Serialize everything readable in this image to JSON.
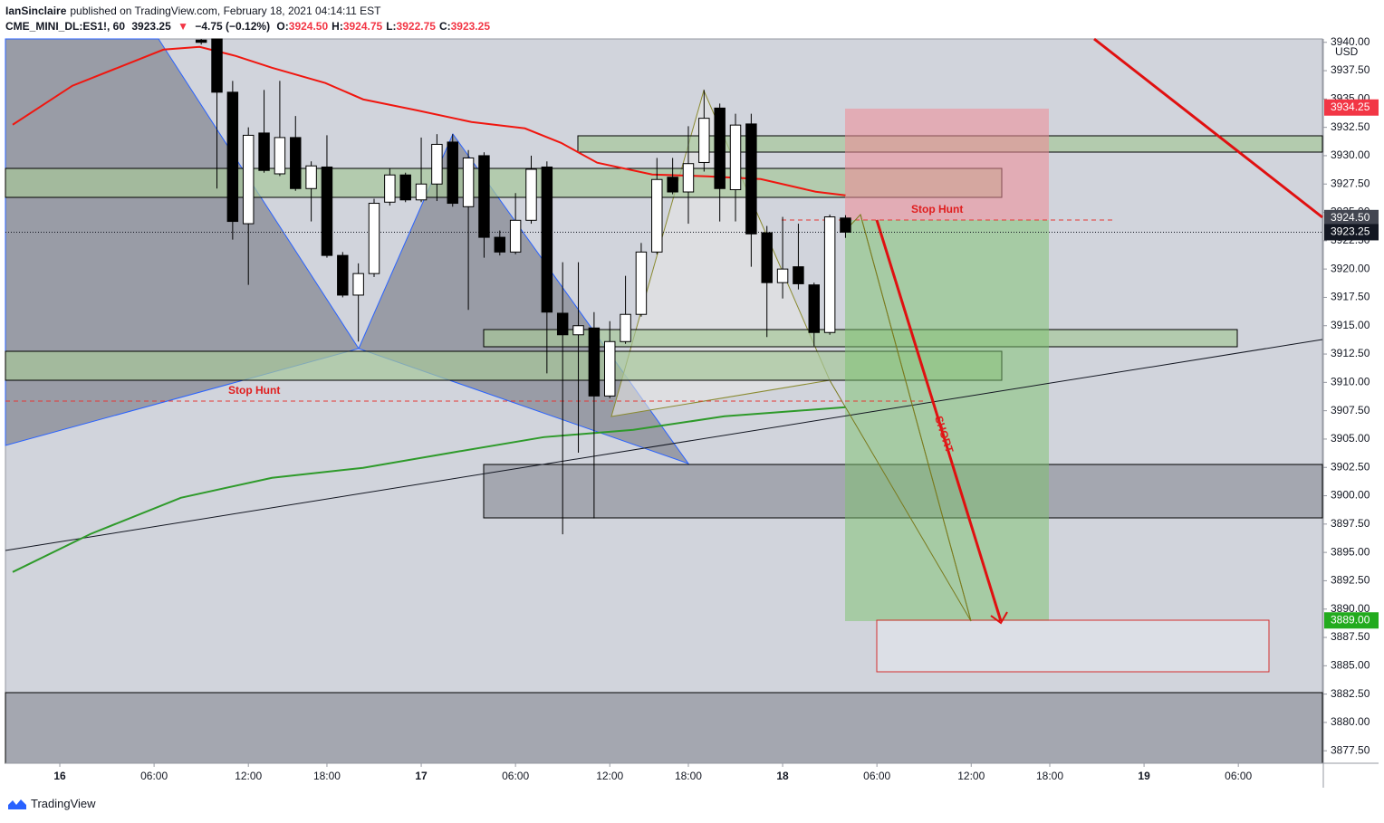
{
  "header": {
    "publisher": "IanSinclaire",
    "published": "published on TradingView.com, February 18, 2021 04:14:11 EST",
    "symbol": "CME_MINI_DL:ES1!, 60",
    "last": "3923.25",
    "arrow": "▼",
    "change": "−4.75 (−0.12%)",
    "ohlc": [
      {
        "key": "O:",
        "value": "3924.50"
      },
      {
        "key": "H:",
        "value": "3924.75"
      },
      {
        "key": "L:",
        "value": "3922.75"
      },
      {
        "key": "C:",
        "value": "3923.25"
      }
    ]
  },
  "footer": {
    "brand": "TradingView"
  },
  "chart_data": {
    "type": "candlestick",
    "currency": "USD",
    "xlim": [
      -3.46,
      80.35
    ],
    "ylim": [
      3876.4,
      3940.3
    ],
    "xticks": [
      {
        "value": 0,
        "label": "16"
      },
      {
        "value": 6,
        "label": "06:00"
      },
      {
        "value": 12,
        "label": "12:00"
      },
      {
        "value": 17,
        "label": "18:00"
      },
      {
        "value": 23,
        "label": "17"
      },
      {
        "value": 29,
        "label": "06:00"
      },
      {
        "value": 35,
        "label": "12:00"
      },
      {
        "value": 40,
        "label": "18:00"
      },
      {
        "value": 46,
        "label": "18"
      },
      {
        "value": 52,
        "label": "06:00"
      },
      {
        "value": 58,
        "label": "12:00"
      },
      {
        "value": 63,
        "label": "18:00"
      },
      {
        "value": 69,
        "label": "19"
      },
      {
        "value": 75,
        "label": "06:00"
      }
    ],
    "yticks": [
      {
        "value": 3877.5,
        "label": "3877.50"
      },
      {
        "value": 3880,
        "label": "3880.00"
      },
      {
        "value": 3882.5,
        "label": "3882.50"
      },
      {
        "value": 3885,
        "label": "3885.00"
      },
      {
        "value": 3887.5,
        "label": "3887.50"
      },
      {
        "value": 3890,
        "label": "3890.00"
      },
      {
        "value": 3892.5,
        "label": "3892.50"
      },
      {
        "value": 3895,
        "label": "3895.00"
      },
      {
        "value": 3897.5,
        "label": "3897.50"
      },
      {
        "value": 3900,
        "label": "3900.00"
      },
      {
        "value": 3902.5,
        "label": "3902.50"
      },
      {
        "value": 3905,
        "label": "3905.00"
      },
      {
        "value": 3907.5,
        "label": "3907.50"
      },
      {
        "value": 3910,
        "label": "3910.00"
      },
      {
        "value": 3912.5,
        "label": "3912.50"
      },
      {
        "value": 3915,
        "label": "3915.00"
      },
      {
        "value": 3917.5,
        "label": "3917.50"
      },
      {
        "value": 3920,
        "label": "3920.00"
      },
      {
        "value": 3922.5,
        "label": "3922.50"
      },
      {
        "value": 3925,
        "label": "3925.00"
      },
      {
        "value": 3927.5,
        "label": "3927.50"
      },
      {
        "value": 3930,
        "label": "3930.00"
      },
      {
        "value": 3932.5,
        "label": "3932.50"
      },
      {
        "value": 3935,
        "label": "3935.00"
      },
      {
        "value": 3937.5,
        "label": "3937.50"
      },
      {
        "value": 3940,
        "label": "3940.00"
      }
    ],
    "up_color": "#ffffff",
    "down_color": "#000000",
    "candles": {
      "x": [
        9,
        10,
        11,
        12,
        13,
        14,
        15,
        16,
        17,
        18,
        19,
        20,
        21,
        22,
        23,
        24,
        25,
        26,
        27,
        28,
        29,
        30,
        31,
        32,
        33,
        34,
        35,
        36,
        37,
        38,
        39,
        40,
        41,
        42,
        43,
        44,
        45,
        46,
        47,
        48,
        49,
        50
      ],
      "open": [
        3940.2,
        3940.3,
        3935.6,
        3924,
        3932,
        3928.4,
        3931.6,
        3927.1,
        3929,
        3921.2,
        3917.7,
        3919.6,
        3925.9,
        3928.3,
        3926.1,
        3927.5,
        3931.2,
        3925.5,
        3930,
        3922.8,
        3921.5,
        3924.3,
        3929,
        3916.1,
        3914.2,
        3914.8,
        3908.8,
        3913.6,
        3916,
        3921.5,
        3928.1,
        3926.8,
        3929.4,
        3934.2,
        3927,
        3932.8,
        3923.2,
        3918.8,
        3920.2,
        3918.6,
        3914.4,
        3924.5
      ],
      "high": [
        3940.3,
        3940.3,
        3936.6,
        3932.5,
        3935.8,
        3936.6,
        3933.5,
        3929.5,
        3931.8,
        3921.5,
        3920.5,
        3926.2,
        3928.9,
        3928.5,
        3931.6,
        3931.9,
        3931.9,
        3930.5,
        3930.3,
        3923.4,
        3926.7,
        3930,
        3929.5,
        3920.6,
        3920.6,
        3916.2,
        3915.4,
        3919.4,
        3922.3,
        3929.8,
        3929.8,
        3932.6,
        3935.8,
        3934.6,
        3933.7,
        3933.7,
        3923.8,
        3924.6,
        3924,
        3918.8,
        3924.8,
        3924.75
      ],
      "low": [
        3939.8,
        3927.1,
        3922.6,
        3918.6,
        3928.5,
        3928.2,
        3926.9,
        3924.2,
        3921,
        3917.5,
        3913.6,
        3919.3,
        3925.6,
        3925.9,
        3925.9,
        3926,
        3925.5,
        3916.4,
        3921,
        3921.2,
        3921.3,
        3924,
        3910.8,
        3896.6,
        3903.8,
        3898,
        3908.6,
        3913.4,
        3915.8,
        3921.3,
        3926.6,
        3924,
        3928.6,
        3924.2,
        3924.2,
        3920.2,
        3914,
        3917.4,
        3918.2,
        3913.2,
        3914.2,
        3922.75
      ],
      "close": [
        3940,
        3935.6,
        3924.2,
        3931.8,
        3928.7,
        3931.6,
        3927.1,
        3929.1,
        3921.2,
        3917.7,
        3919.6,
        3925.8,
        3928.3,
        3926.1,
        3927.5,
        3931,
        3925.8,
        3929.8,
        3922.8,
        3921.5,
        3924.3,
        3928.8,
        3916.2,
        3914.2,
        3915,
        3908.8,
        3913.6,
        3916,
        3921.5,
        3927.9,
        3926.8,
        3929.3,
        3933.3,
        3927.1,
        3932.7,
        3923.1,
        3918.8,
        3920,
        3918.7,
        3914.4,
        3924.6,
        3923.25
      ]
    },
    "lines": [
      {
        "color": "#f0160f",
        "x": [
          -3.0,
          0.8,
          6.6,
          8.9,
          11.2,
          13.5,
          16.9,
          19.3,
          22.7,
          26.2,
          29.6,
          31.9,
          34.2,
          37.7,
          41.2,
          44.6,
          48.1,
          50
        ],
        "values": [
          3932.73,
          3936.17,
          3939.36,
          3939.6,
          3938.8,
          3937.76,
          3936.41,
          3934.97,
          3934.01,
          3932.97,
          3932.41,
          3931.13,
          3929.38,
          3928.34,
          3928.18,
          3927.94,
          3926.82,
          3926.5
        ]
      },
      {
        "color": "#2e9a2a",
        "x": [
          -3.0,
          1.96,
          7.7,
          13.5,
          19.3,
          25.0,
          30.8,
          36.5,
          42.3,
          50
        ],
        "values": [
          3893.27,
          3896.63,
          3899.82,
          3901.58,
          3902.46,
          3903.82,
          3905.17,
          3905.81,
          3907.01,
          3907.81
        ]
      }
    ],
    "price_labels": [
      {
        "value": 3934.25,
        "label": "3934.25",
        "color": "#f23645"
      },
      {
        "value": 3924.5,
        "label": "3924.50",
        "color": "#434651"
      },
      {
        "value": 3923.25,
        "label": "3923.25",
        "color": "#131722"
      },
      {
        "value": 3889,
        "label": "3889.00",
        "color": "#22ab1e"
      }
    ],
    "annotations": [
      {
        "text": "Stop Hunt"
      },
      {
        "text": "Stop Hunt"
      },
      {
        "text": "SHORT"
      }
    ]
  }
}
